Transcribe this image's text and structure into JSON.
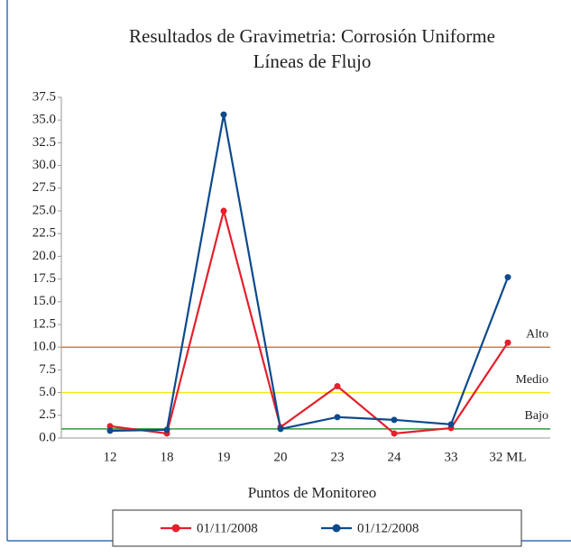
{
  "chart_data": {
    "type": "line",
    "title": "Resultados de Gravimetria: Corrosión Uniforme",
    "subtitle": "Líneas de Flujo",
    "x_label": "Puntos de Monitoreo",
    "categories": [
      "12",
      "18",
      "19",
      "20",
      "23",
      "24",
      "33",
      "32 ML"
    ],
    "series": [
      {
        "name": "01/11/2008",
        "color": "#e3202b",
        "values": [
          1.3,
          0.5,
          25.0,
          1.2,
          5.7,
          0.5,
          1.1,
          10.5
        ]
      },
      {
        "name": "01/12/2008",
        "color": "#0d4a8c",
        "values": [
          0.8,
          0.9,
          35.6,
          1.0,
          2.3,
          2.0,
          1.5,
          17.7
        ]
      }
    ],
    "reference_lines": [
      {
        "label": "Alto",
        "value": 10,
        "color": "#e8782a"
      },
      {
        "label": "Medio",
        "value": 5,
        "color": "#f5e61c"
      },
      {
        "label": "Bajo",
        "value": 1,
        "color": "#2a9a3a"
      }
    ],
    "ylim": [
      0,
      37.5
    ],
    "yticks": [
      {
        "value": 0,
        "label": "0.0"
      },
      2.5,
      {
        "value": 5,
        "label": "5.0"
      },
      7.5,
      {
        "value": 10,
        "label": "10.0"
      },
      12.5,
      {
        "value": 15,
        "label": "15.0"
      },
      17.5,
      {
        "value": 20,
        "label": "20.0"
      },
      22.5,
      {
        "value": 25,
        "label": "25.0"
      },
      27.5,
      {
        "value": 30,
        "label": "30.0"
      },
      32.5,
      {
        "value": 35,
        "label": "35.0"
      },
      37.5
    ],
    "grid": false
  }
}
